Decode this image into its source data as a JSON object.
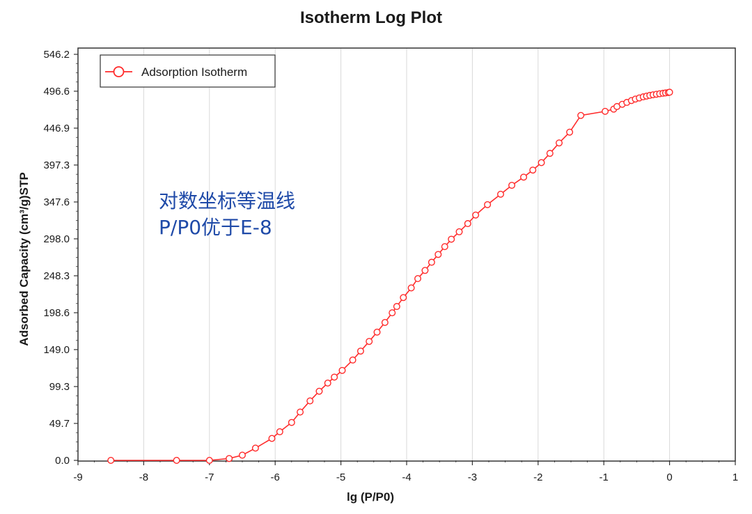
{
  "chart_data": {
    "type": "line",
    "title": "Isotherm Log Plot",
    "xlabel": "lg (P/P0)",
    "ylabel": "Adsorbed Capacity (cm³/g)STP",
    "xlim": [
      -9,
      1
    ],
    "ylim": [
      0,
      546.2
    ],
    "x_ticks": [
      "-9",
      "-8",
      "-7",
      "-6",
      "-5",
      "-4",
      "-3",
      "-2",
      "-1",
      "0",
      "1"
    ],
    "y_ticks": [
      "0.0",
      "49.7",
      "99.3",
      "149.0",
      "198.6",
      "248.3",
      "298.0",
      "347.6",
      "397.3",
      "446.9",
      "496.6",
      "546.2"
    ],
    "grid": "vertical",
    "legend": "top-left",
    "series": [
      {
        "name": "Adsorption Isotherm",
        "color": "#ff2a2a",
        "marker": "open-circle",
        "x": [
          -8.5,
          -7.5,
          -7.0,
          -6.7,
          -6.5,
          -6.3,
          -6.05,
          -5.93,
          -5.75,
          -5.62,
          -5.47,
          -5.33,
          -5.2,
          -5.1,
          -4.98,
          -4.82,
          -4.7,
          -4.57,
          -4.45,
          -4.33,
          -4.22,
          -4.15,
          -4.05,
          -3.93,
          -3.83,
          -3.72,
          -3.62,
          -3.52,
          -3.42,
          -3.32,
          -3.2,
          -3.07,
          -2.95,
          -2.77,
          -2.57,
          -2.4,
          -2.22,
          -2.08,
          -1.95,
          -1.82,
          -1.68,
          -1.52,
          -1.35,
          -0.98,
          -0.85,
          -0.8,
          -0.72,
          -0.65,
          -0.58,
          -0.52,
          -0.46,
          -0.4,
          -0.35,
          -0.3,
          -0.25,
          -0.2,
          -0.15,
          -0.1,
          -0.06,
          -0.02,
          0.0
        ],
        "y": [
          0.0,
          0.0,
          0.0,
          2.5,
          7.0,
          16.5,
          29.5,
          38.5,
          51.0,
          65.0,
          80.0,
          93.0,
          104.0,
          112.0,
          121.0,
          135.0,
          147.0,
          160.0,
          172.5,
          185.5,
          198.5,
          207.0,
          219.0,
          232.0,
          244.5,
          255.5,
          266.5,
          277.0,
          287.5,
          297.5,
          307.5,
          318.5,
          330.0,
          344.0,
          358.0,
          370.0,
          381.0,
          390.5,
          400.5,
          413.0,
          427.0,
          441.5,
          464.0,
          469.5,
          472.5,
          476.0,
          479.0,
          481.5,
          484.0,
          486.0,
          487.5,
          489.0,
          490.0,
          491.0,
          491.8,
          492.5,
          493.2,
          493.8,
          494.3,
          494.8,
          495.2
        ]
      }
    ],
    "annotations": [
      "对数坐标等温线",
      "P/P0优于E-8"
    ]
  }
}
